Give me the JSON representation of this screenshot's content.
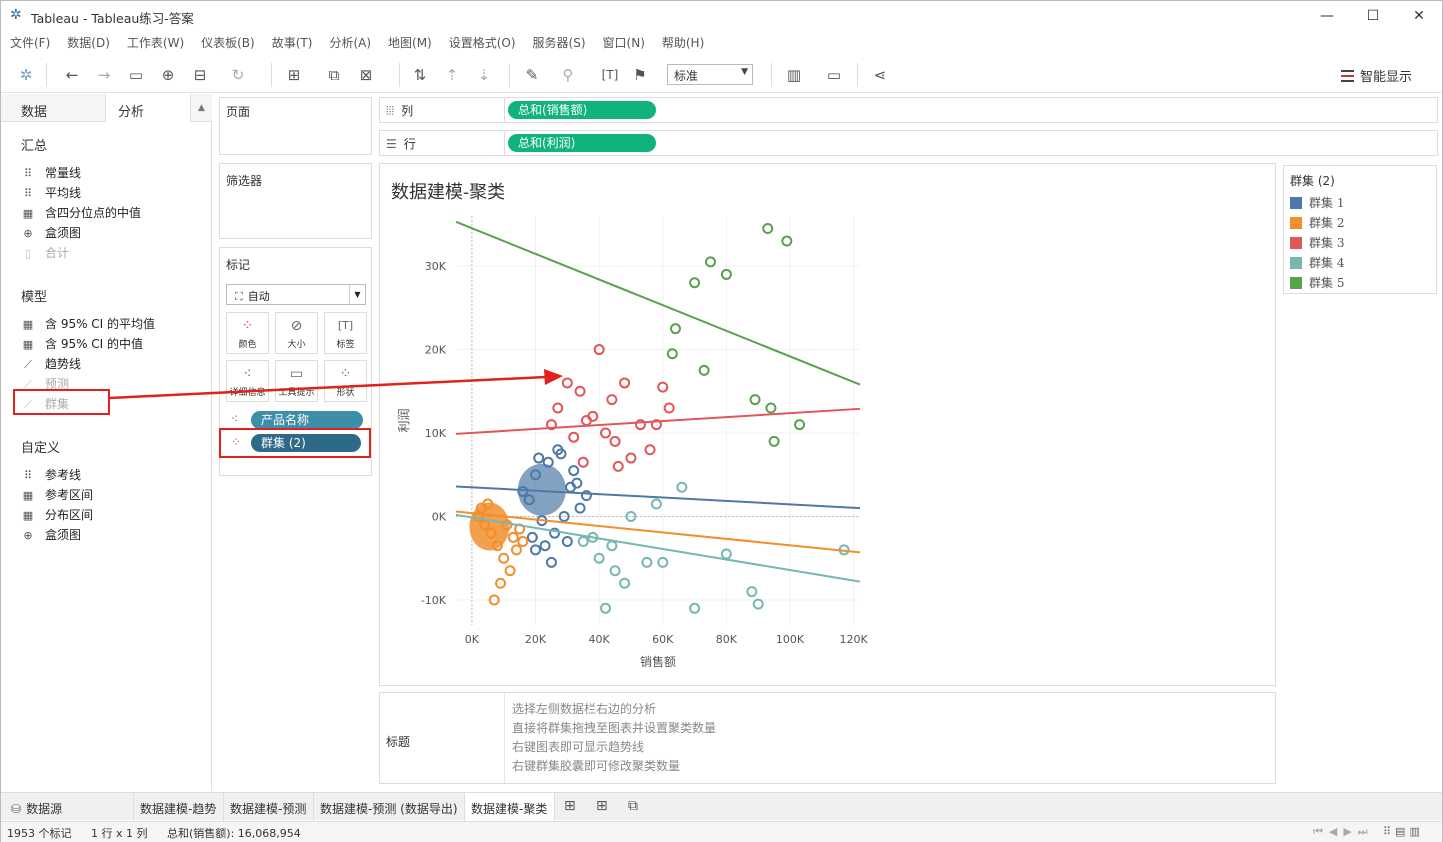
{
  "window": {
    "title": "Tableau - Tableau练习-答案",
    "minimize": "—",
    "maximize": "☐",
    "close": "✕"
  },
  "menu": [
    "文件(F)",
    "数据(D)",
    "工作表(W)",
    "仪表板(B)",
    "故事(T)",
    "分析(A)",
    "地图(M)",
    "设置格式(O)",
    "服务器(S)",
    "窗口(N)",
    "帮助(H)"
  ],
  "toolbar": {
    "fit_value": "标准",
    "show_me": "智能显示"
  },
  "left_pane": {
    "tab_data": "数据",
    "tab_analysis": "分析",
    "summary": {
      "heading": "汇总",
      "items": [
        "常量线",
        "平均线",
        "含四分位点的中值",
        "盒须图",
        "合计"
      ]
    },
    "model": {
      "heading": "模型",
      "items": [
        "含 95% CI 的平均值",
        "含 95% CI 的中值",
        "趋势线",
        "预测",
        "群集"
      ]
    },
    "custom": {
      "heading": "自定义",
      "items": [
        "参考线",
        "参考区间",
        "分布区间",
        "盒须图"
      ]
    }
  },
  "cards": {
    "pages": "页面",
    "filters": "筛选器",
    "marks": {
      "title": "标记",
      "type": "自动",
      "buttons": [
        "颜色",
        "大小",
        "标签",
        "详细信息",
        "工具提示",
        "形状"
      ],
      "pills": [
        "产品名称",
        "群集 (2)"
      ]
    }
  },
  "shelves": {
    "columns_label": "列",
    "columns_pill": "总和(销售额)",
    "rows_label": "行",
    "rows_pill": "总和(利润)"
  },
  "colors": {
    "pill_green": "#0fb37b",
    "pill_teal": "#3d8ea8",
    "pill_dark": "#2d6a87",
    "highlight": "#e2211c"
  },
  "chart_data": {
    "type": "scatter",
    "title": "数据建模-聚类",
    "xlabel": "销售额",
    "ylabel": "利润",
    "xlim": [
      -5000,
      122000
    ],
    "ylim": [
      -13000,
      36000
    ],
    "x_ticks": [
      "0K",
      "20K",
      "40K",
      "60K",
      "80K",
      "100K",
      "120K"
    ],
    "y_ticks": [
      "-10K",
      "0K",
      "10K",
      "20K",
      "30K"
    ],
    "series": [
      {
        "name": "群集 1",
        "color": "#4e79a7",
        "trend": [
          [
            -5000,
            3600
          ],
          [
            122000,
            1000
          ]
        ],
        "values": [
          [
            16000,
            3000
          ],
          [
            20000,
            5000
          ],
          [
            24000,
            6500
          ],
          [
            28000,
            7500
          ],
          [
            32000,
            5500
          ],
          [
            18000,
            2000
          ],
          [
            22000,
            -500
          ],
          [
            26000,
            -2000
          ],
          [
            30000,
            -3000
          ],
          [
            34000,
            1000
          ],
          [
            20000,
            -4000
          ],
          [
            25000,
            -5500
          ],
          [
            21000,
            7000
          ],
          [
            27000,
            8000
          ],
          [
            33000,
            4000
          ],
          [
            36000,
            2500
          ],
          [
            19000,
            -2500
          ],
          [
            23000,
            -3500
          ],
          [
            29000,
            0
          ],
          [
            31000,
            3500
          ]
        ]
      },
      {
        "name": "群集 2",
        "color": "#f28e2b",
        "trend": [
          [
            -5000,
            600
          ],
          [
            122000,
            -4300
          ]
        ],
        "values": [
          [
            2000,
            0
          ],
          [
            4000,
            -1000
          ],
          [
            6000,
            -2000
          ],
          [
            8000,
            -3500
          ],
          [
            10000,
            -5000
          ],
          [
            12000,
            -6500
          ],
          [
            9000,
            -8000
          ],
          [
            7000,
            -10000
          ],
          [
            14000,
            -4000
          ],
          [
            16000,
            -3000
          ],
          [
            3000,
            1000
          ],
          [
            5000,
            1500
          ],
          [
            11000,
            -1000
          ],
          [
            13000,
            -2500
          ],
          [
            15000,
            -1500
          ]
        ]
      },
      {
        "name": "群集 3",
        "color": "#e15759",
        "trend": [
          [
            -5000,
            9900
          ],
          [
            122000,
            12900
          ]
        ],
        "values": [
          [
            30000,
            16000
          ],
          [
            34000,
            15000
          ],
          [
            40000,
            20000
          ],
          [
            44000,
            14000
          ],
          [
            48000,
            16000
          ],
          [
            53000,
            11000
          ],
          [
            56000,
            8000
          ],
          [
            60000,
            15500
          ],
          [
            62000,
            13000
          ],
          [
            38000,
            12000
          ],
          [
            42000,
            10000
          ],
          [
            46000,
            6000
          ],
          [
            50000,
            7000
          ],
          [
            27000,
            13000
          ],
          [
            32000,
            9500
          ],
          [
            36000,
            11500
          ],
          [
            25000,
            11000
          ],
          [
            58000,
            11000
          ],
          [
            35000,
            6500
          ],
          [
            45000,
            9000
          ]
        ]
      },
      {
        "name": "群集 4",
        "color": "#76b7b2",
        "trend": [
          [
            -5000,
            200
          ],
          [
            122000,
            -7800
          ]
        ],
        "values": [
          [
            40000,
            -5000
          ],
          [
            45000,
            -6500
          ],
          [
            48000,
            -8000
          ],
          [
            55000,
            -5500
          ],
          [
            60000,
            -5500
          ],
          [
            70000,
            -11000
          ],
          [
            80000,
            -4500
          ],
          [
            88000,
            -9000
          ],
          [
            90000,
            -10500
          ],
          [
            117000,
            -4000
          ],
          [
            38000,
            -2500
          ],
          [
            42000,
            -11000
          ],
          [
            50000,
            0
          ],
          [
            58000,
            1500
          ],
          [
            66000,
            3500
          ],
          [
            35000,
            -3000
          ],
          [
            44000,
            -3500
          ]
        ]
      },
      {
        "name": "群集 5",
        "color": "#59a14f",
        "trend": [
          [
            -5000,
            35300
          ],
          [
            122000,
            15800
          ]
        ],
        "values": [
          [
            70000,
            28000
          ],
          [
            75000,
            30500
          ],
          [
            80000,
            29000
          ],
          [
            93000,
            34500
          ],
          [
            99000,
            33000
          ],
          [
            64000,
            22500
          ],
          [
            73000,
            17500
          ],
          [
            89000,
            14000
          ],
          [
            94000,
            13000
          ],
          [
            95000,
            9000
          ],
          [
            103000,
            11000
          ],
          [
            63000,
            19500
          ]
        ]
      }
    ]
  },
  "legend": {
    "title": "群集 (2)",
    "items": [
      "群集 1",
      "群集 2",
      "群集 3",
      "群集 4",
      "群集 5"
    ]
  },
  "caption": {
    "label": "标题",
    "lines": [
      "选择左侧数据栏右边的分析",
      "直接将群集拖拽至图表并设置聚类数量",
      "右键图表即可显示趋势线",
      "右键群集胶囊即可修改聚类数量"
    ]
  },
  "sheet_tabs": {
    "datasource": "数据源",
    "tabs": [
      "数据建模-趋势",
      "数据建模-预测",
      "数据建模-预测 (数据导出)",
      "数据建模-聚类"
    ],
    "active": "数据建模-聚类"
  },
  "status": {
    "marks": "1953 个标记",
    "dims": "1 行 x 1 列",
    "sum": "总和(销售额): 16,068,954"
  }
}
